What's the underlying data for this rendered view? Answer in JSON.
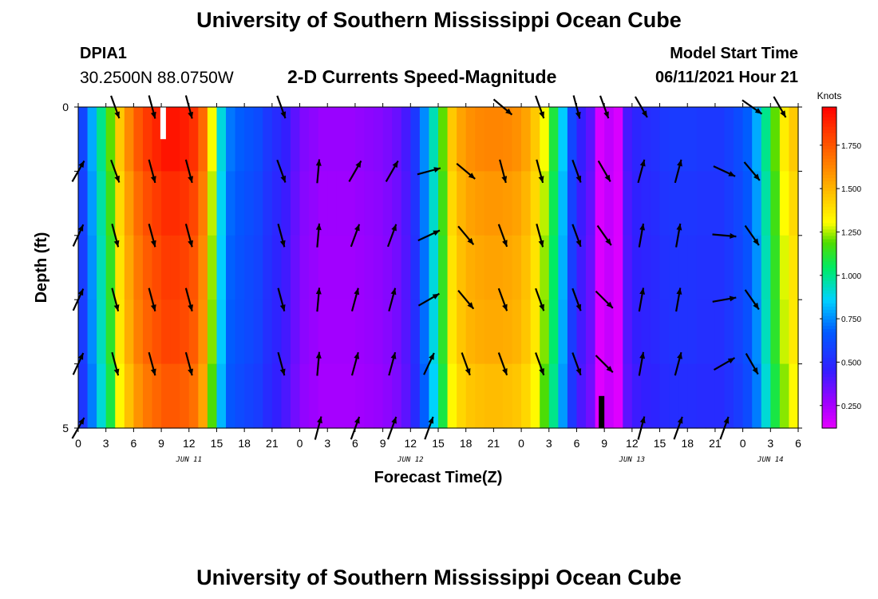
{
  "header": {
    "title": "University of Southern Mississippi Ocean Cube",
    "station_id": "DPIA1",
    "station_coords": "30.2500N  88.0750W",
    "subtitle": "2-D Currents Speed-Magnitude",
    "model_start_label": "Model Start Time",
    "model_start_value": "06/11/2021 Hour 21"
  },
  "footer": {
    "title": "University of Southern Mississippi Ocean Cube"
  },
  "chart_data": {
    "type": "heatmap",
    "title": "2-D Currents Speed-Magnitude",
    "xlabel": "Forecast Time(Z)",
    "ylabel": "Depth (ft)",
    "xlim": [
      0,
      78
    ],
    "ylim": [
      0,
      5
    ],
    "x_tick_labels": [
      "0",
      "3",
      "6",
      "9",
      "12",
      "15",
      "18",
      "21",
      "0",
      "3",
      "6",
      "9",
      "12",
      "15",
      "18",
      "21",
      "0",
      "3",
      "6",
      "9",
      "12",
      "15",
      "18",
      "21",
      "0",
      "3",
      "6"
    ],
    "day_labels": [
      {
        "label": "JUN 11",
        "hour": 12
      },
      {
        "label": "JUN 12",
        "hour": 36
      },
      {
        "label": "JUN 13",
        "hour": 60
      },
      {
        "label": "JUN 14",
        "hour": 75
      }
    ],
    "y_tick_labels": [
      "0",
      "5"
    ],
    "depths_ft": [
      0,
      1,
      2,
      3,
      4,
      5
    ],
    "x_hours": [
      0,
      1,
      2,
      3,
      4,
      5,
      6,
      7,
      8,
      9,
      10,
      11,
      12,
      13,
      14,
      15,
      16,
      17,
      18,
      19,
      20,
      21,
      22,
      23,
      24,
      25,
      26,
      27,
      28,
      29,
      30,
      31,
      32,
      33,
      34,
      35,
      36,
      37,
      38,
      39,
      40,
      41,
      42,
      43,
      44,
      45,
      46,
      47,
      48,
      49,
      50,
      51,
      52,
      53,
      54,
      55,
      56,
      57,
      58,
      59,
      60,
      61,
      62,
      63,
      64,
      65,
      66,
      67,
      68,
      69,
      70,
      71,
      72,
      73,
      74,
      75,
      76,
      77,
      78
    ],
    "speed_profile_knots": [
      0.6,
      0.8,
      1.0,
      1.2,
      1.45,
      1.62,
      1.75,
      1.83,
      1.88,
      1.92,
      1.92,
      1.9,
      1.85,
      1.7,
      1.3,
      0.9,
      0.72,
      0.68,
      0.65,
      0.62,
      0.55,
      0.5,
      0.45,
      0.38,
      0.32,
      0.3,
      0.28,
      0.28,
      0.28,
      0.28,
      0.29,
      0.3,
      0.31,
      0.33,
      0.36,
      0.42,
      0.55,
      0.75,
      0.95,
      1.2,
      1.45,
      1.55,
      1.6,
      1.62,
      1.63,
      1.63,
      1.62,
      1.6,
      1.55,
      1.45,
      1.3,
      1.1,
      0.85,
      0.6,
      0.45,
      0.38,
      0.15,
      0.2,
      0.15,
      0.42,
      0.48,
      0.5,
      0.52,
      0.55,
      0.56,
      0.56,
      0.56,
      0.55,
      0.55,
      0.55,
      0.58,
      0.62,
      0.68,
      0.8,
      1.0,
      1.2,
      1.35,
      1.45,
      1.5
    ],
    "depth_scale": [
      1.0,
      0.97,
      0.95,
      0.94,
      0.91
    ],
    "colorbar": {
      "unit": "Knots",
      "min": 0.12,
      "max": 1.97,
      "ticks": [
        0.25,
        0.5,
        0.75,
        1.0,
        1.25,
        1.5,
        1.75
      ],
      "tick_labels": [
        "0.250",
        "0.500",
        "0.750",
        "1.000",
        "1.250",
        "1.500",
        "1.750"
      ]
    },
    "vector_hours": [
      0,
      4,
      8,
      12,
      22,
      26,
      30,
      34,
      38,
      42,
      46,
      50,
      54,
      57,
      61,
      65,
      70,
      73,
      76
    ],
    "vector_directions_deg_from_north": [
      [
        null,
        160,
        165,
        165,
        160,
        null,
        null,
        null,
        null,
        null,
        130,
        160,
        165,
        160,
        150,
        null,
        null,
        125,
        150
      ],
      [
        30,
        160,
        165,
        165,
        160,
        5,
        30,
        30,
        75,
        130,
        165,
        165,
        160,
        150,
        15,
        15,
        115,
        140,
        null
      ],
      [
        25,
        165,
        165,
        165,
        165,
        5,
        20,
        20,
        65,
        140,
        160,
        165,
        160,
        145,
        10,
        10,
        95,
        145,
        null
      ],
      [
        25,
        165,
        165,
        165,
        165,
        5,
        15,
        15,
        60,
        140,
        160,
        160,
        160,
        135,
        10,
        10,
        80,
        145,
        null
      ],
      [
        25,
        165,
        165,
        165,
        165,
        5,
        15,
        15,
        25,
        160,
        160,
        160,
        160,
        135,
        10,
        15,
        60,
        150,
        null
      ],
      [
        30,
        null,
        null,
        null,
        null,
        15,
        20,
        20,
        20,
        null,
        null,
        null,
        null,
        null,
        15,
        20,
        20,
        null,
        null
      ]
    ],
    "markers": [
      {
        "color": "#ffffff",
        "hour": 9.2,
        "depth_from": 0,
        "depth_to": 0.5
      },
      {
        "color": "#000000",
        "hour": 56.7,
        "depth_from": 4.5,
        "depth_to": 5
      }
    ]
  }
}
